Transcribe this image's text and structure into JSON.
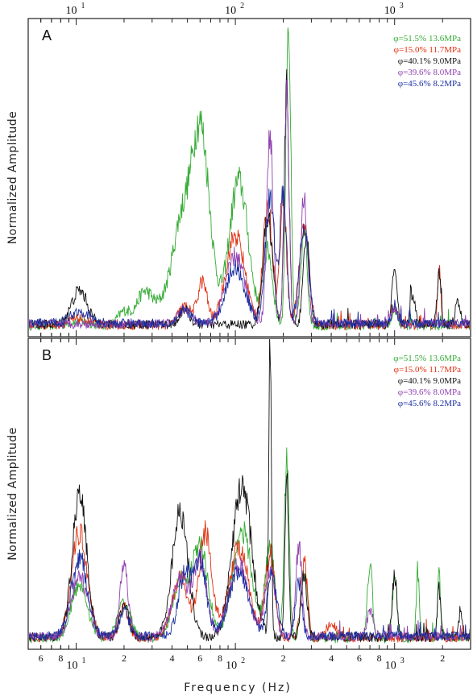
{
  "chart_data": [
    {
      "type": "line",
      "panel_label": "A",
      "xscale": "log",
      "xlim": [
        5,
        3000
      ],
      "ylim": [
        0,
        1
      ],
      "xlabel": "",
      "ylabel": "Normalized Amplitude",
      "top_axis_ticks": [
        {
          "value": 10,
          "base": "10",
          "exp": "1"
        },
        {
          "value": 100,
          "base": "10",
          "exp": "2"
        },
        {
          "value": 1000,
          "base": "10",
          "exp": "3"
        }
      ],
      "legend_position": "top-right",
      "series": [
        {
          "name": "φ=51.5% 13.6MPa",
          "color": "#33aa33",
          "peaks": [
            [
              10.5,
              0.015,
              0.06
            ],
            [
              20,
              0.045,
              0.04
            ],
            [
              27,
              0.11,
              0.05
            ],
            [
              36,
              0.07,
              0.05
            ],
            [
              45,
              0.28,
              0.05
            ],
            [
              60,
              0.65,
              0.06
            ],
            [
              105,
              0.47,
              0.06
            ],
            [
              160,
              0.24,
              0.03
            ],
            [
              215,
              1.0,
              0.015
            ],
            [
              270,
              0.3,
              0.02
            ],
            [
              1000,
              0.05,
              0.02
            ]
          ]
        },
        {
          "name": "φ=15.0% 11.7MPa",
          "color": "#e03010",
          "peaks": [
            [
              10.5,
              0.02,
              0.06
            ],
            [
              48,
              0.06,
              0.04
            ],
            [
              62,
              0.14,
              0.03
            ],
            [
              100,
              0.29,
              0.06
            ],
            [
              160,
              0.38,
              0.03
            ],
            [
              200,
              0.42,
              0.02
            ],
            [
              270,
              0.32,
              0.03
            ],
            [
              1900,
              0.18,
              0.01
            ],
            [
              1000,
              0.06,
              0.02
            ]
          ]
        },
        {
          "name": "φ=40.1%   9.0MPa",
          "color": "#111111",
          "peaks": [
            [
              10.5,
              0.11,
              0.05
            ],
            [
              48,
              0.05,
              0.03
            ],
            [
              160,
              0.35,
              0.03
            ],
            [
              210,
              0.76,
              0.015
            ],
            [
              280,
              0.28,
              0.02
            ],
            [
              1000,
              0.18,
              0.015
            ],
            [
              1300,
              0.1,
              0.015
            ],
            [
              1900,
              0.16,
              0.012
            ],
            [
              2500,
              0.08,
              0.015
            ]
          ]
        },
        {
          "name": "φ=39.6%   8.0MPa",
          "color": "#9040b0",
          "peaks": [
            [
              48,
              0.05,
              0.04
            ],
            [
              100,
              0.22,
              0.06
            ],
            [
              165,
              0.62,
              0.02
            ],
            [
              210,
              0.75,
              0.015
            ],
            [
              270,
              0.42,
              0.02
            ],
            [
              1000,
              0.05,
              0.02
            ]
          ]
        },
        {
          "name": "φ=45.6%   8.2MPa",
          "color": "#1a2ea0",
          "peaks": [
            [
              10.5,
              0.04,
              0.06
            ],
            [
              48,
              0.04,
              0.04
            ],
            [
              100,
              0.18,
              0.06
            ],
            [
              165,
              0.4,
              0.03
            ],
            [
              200,
              0.42,
              0.02
            ],
            [
              270,
              0.3,
              0.03
            ],
            [
              1000,
              0.04,
              0.02
            ]
          ]
        }
      ]
    },
    {
      "type": "line",
      "panel_label": "B",
      "xscale": "log",
      "xlim": [
        5,
        3000
      ],
      "ylim": [
        0,
        1
      ],
      "xlabel": "Frequency (Hz)",
      "ylabel": "Normalized Amplitude",
      "bottom_axis_ticks": [
        {
          "value": 6,
          "label": "6"
        },
        {
          "value": 8,
          "label": "8"
        },
        {
          "value": 10,
          "base": "10",
          "exp": "1"
        },
        {
          "value": 20,
          "label": "2"
        },
        {
          "value": 40,
          "label": "4"
        },
        {
          "value": 60,
          "label": "6"
        },
        {
          "value": 80,
          "label": "8"
        },
        {
          "value": 100,
          "base": "10",
          "exp": "2"
        },
        {
          "value": 200,
          "label": "2"
        },
        {
          "value": 400,
          "label": "4"
        },
        {
          "value": 600,
          "label": "6"
        },
        {
          "value": 800,
          "label": "8"
        },
        {
          "value": 1000,
          "base": "10",
          "exp": "3"
        },
        {
          "value": 2000,
          "label": "2"
        }
      ],
      "legend_position": "top-right",
      "series": [
        {
          "name": "φ=51.5% 13.6MPa",
          "color": "#33aa33",
          "peaks": [
            [
              10.5,
              0.18,
              0.05
            ],
            [
              20,
              0.12,
              0.04
            ],
            [
              45,
              0.18,
              0.05
            ],
            [
              60,
              0.3,
              0.05
            ],
            [
              110,
              0.36,
              0.06
            ],
            [
              165,
              0.3,
              0.03
            ],
            [
              210,
              0.6,
              0.015
            ],
            [
              270,
              0.22,
              0.02
            ],
            [
              700,
              0.25,
              0.015
            ],
            [
              1000,
              0.2,
              0.015
            ],
            [
              1400,
              0.2,
              0.01
            ],
            [
              1900,
              0.22,
              0.01
            ]
          ]
        },
        {
          "name": "φ=15.0% 11.7MPa",
          "color": "#e03010",
          "peaks": [
            [
              10.5,
              0.35,
              0.05
            ],
            [
              20,
              0.1,
              0.03
            ],
            [
              45,
              0.2,
              0.05
            ],
            [
              65,
              0.35,
              0.04
            ],
            [
              105,
              0.3,
              0.06
            ],
            [
              165,
              0.28,
              0.03
            ],
            [
              270,
              0.26,
              0.02
            ],
            [
              400,
              0.05,
              0.03
            ]
          ]
        },
        {
          "name": "φ=40.1%   9.0MPa",
          "color": "#111111",
          "peaks": [
            [
              10.5,
              0.48,
              0.045
            ],
            [
              20,
              0.1,
              0.03
            ],
            [
              45,
              0.42,
              0.05
            ],
            [
              110,
              0.5,
              0.06
            ],
            [
              165,
              1.0,
              0.008
            ],
            [
              210,
              0.52,
              0.012
            ],
            [
              270,
              0.2,
              0.02
            ],
            [
              1000,
              0.2,
              0.015
            ],
            [
              1900,
              0.16,
              0.01
            ],
            [
              2600,
              0.1,
              0.01
            ]
          ]
        },
        {
          "name": "φ=39.6%   8.0MPa",
          "color": "#9040b0",
          "peaks": [
            [
              10.5,
              0.2,
              0.05
            ],
            [
              20,
              0.24,
              0.025
            ],
            [
              45,
              0.2,
              0.05
            ],
            [
              60,
              0.25,
              0.04
            ],
            [
              105,
              0.24,
              0.06
            ],
            [
              165,
              0.22,
              0.03
            ],
            [
              250,
              0.3,
              0.02
            ],
            [
              700,
              0.08,
              0.02
            ]
          ]
        },
        {
          "name": "φ=45.6%   8.2MPa",
          "color": "#1a2ea0",
          "peaks": [
            [
              10.5,
              0.26,
              0.05
            ],
            [
              20,
              0.08,
              0.03
            ],
            [
              48,
              0.2,
              0.04
            ],
            [
              60,
              0.24,
              0.04
            ],
            [
              105,
              0.22,
              0.06
            ],
            [
              170,
              0.2,
              0.03
            ],
            [
              250,
              0.18,
              0.02
            ]
          ]
        }
      ]
    }
  ]
}
